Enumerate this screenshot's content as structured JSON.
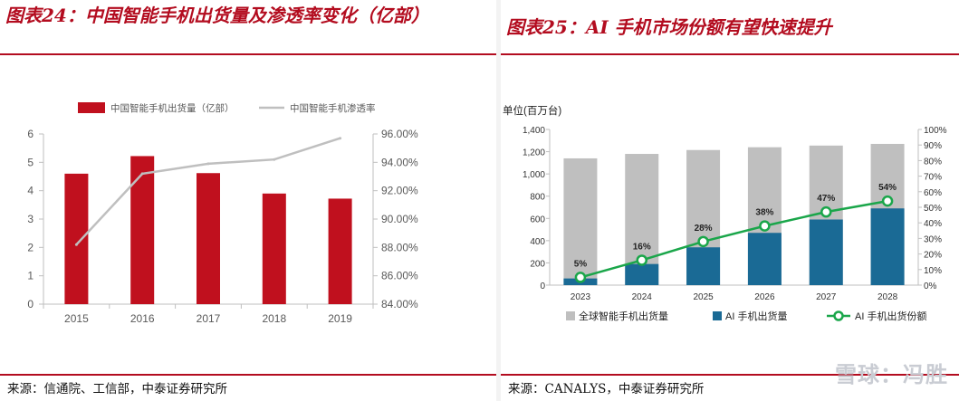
{
  "left_panel": {
    "title": "图表24：中国智能手机出货量及渗透率变化（亿部）",
    "source": "来源：信通院、工信部，中泰证券研究所"
  },
  "right_panel": {
    "title": "图表25：AI 手机市场份额有望快速提升",
    "source": "来源：CANALYS，中泰证券研究所"
  },
  "watermark": "雪球：冯胜",
  "colors": {
    "accent_red": "#b30c1f",
    "bar_red": "#c0101e",
    "line_gray": "#bfbfbf",
    "total_gray": "#bfbfbf",
    "ai_blue": "#1a6a95",
    "share_green": "#1aa64a"
  },
  "chart_data": [
    {
      "type": "bar",
      "title": "中国智能手机出货量及渗透率变化（亿部）",
      "categories": [
        "2015",
        "2016",
        "2017",
        "2018",
        "2019"
      ],
      "series": [
        {
          "name": "中国智能手机出货量（亿部）",
          "type": "bar",
          "axis": "left",
          "values": [
            4.6,
            5.22,
            4.62,
            3.9,
            3.72
          ]
        },
        {
          "name": "中国智能手机渗透率",
          "type": "line",
          "axis": "right",
          "values": [
            88.2,
            93.2,
            93.9,
            94.2,
            95.7
          ]
        }
      ],
      "ylim": [
        0,
        6
      ],
      "yticks": [
        "0",
        "1",
        "2",
        "3",
        "4",
        "5",
        "6"
      ],
      "y2lim": [
        84,
        96
      ],
      "y2ticks": [
        "84.00%",
        "86.00%",
        "88.00%",
        "90.00%",
        "92.00%",
        "94.00%",
        "96.00%"
      ],
      "legend": "top",
      "grid": false
    },
    {
      "type": "bar",
      "title": "AI 手机市场份额有望快速提升",
      "ylabel": "单位(百万台)",
      "categories": [
        "2023",
        "2024",
        "2025",
        "2026",
        "2027",
        "2028"
      ],
      "series": [
        {
          "name": "全球智能手机出货量",
          "type": "bar",
          "axis": "left",
          "values": [
            1140,
            1180,
            1215,
            1240,
            1255,
            1270
          ]
        },
        {
          "name": "AI 手机出货量",
          "type": "bar",
          "axis": "left",
          "values": [
            60,
            190,
            340,
            470,
            590,
            690
          ]
        },
        {
          "name": "AI 手机出货份额",
          "type": "line",
          "axis": "right",
          "values": [
            5,
            16,
            28,
            38,
            47,
            54
          ],
          "labels": [
            "5%",
            "16%",
            "28%",
            "38%",
            "47%",
            "54%"
          ]
        }
      ],
      "ylim": [
        0,
        1400
      ],
      "yticks": [
        "0",
        "200",
        "400",
        "600",
        "800",
        "1,000",
        "1,200",
        "1,400"
      ],
      "y2lim": [
        0,
        100
      ],
      "y2ticks": [
        "0%",
        "10%",
        "20%",
        "30%",
        "40%",
        "50%",
        "60%",
        "70%",
        "80%",
        "90%",
        "100%"
      ],
      "legend": "bottom",
      "grid": false
    }
  ]
}
